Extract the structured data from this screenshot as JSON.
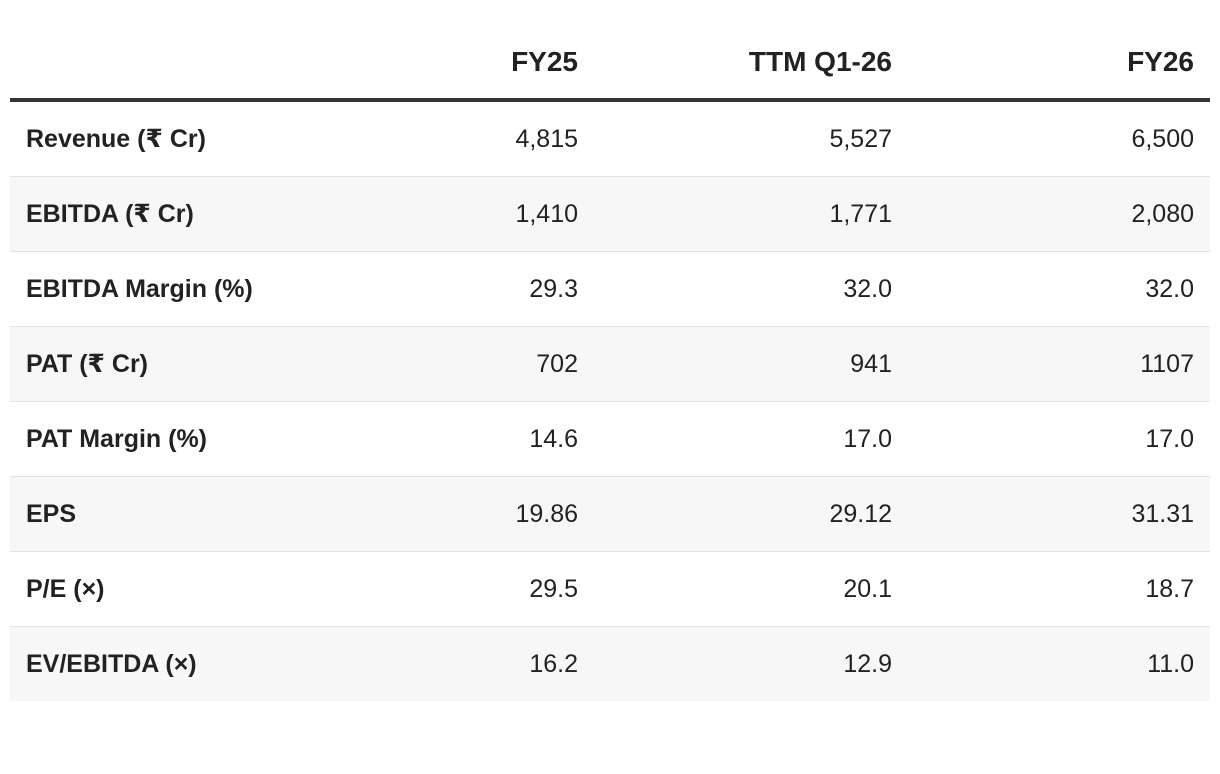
{
  "table": {
    "header": [
      "FY25",
      "TTM Q1-26",
      "FY26"
    ],
    "rows": [
      [
        "Revenue (₹ Cr)",
        "4,815",
        "5,527",
        "6,500"
      ],
      [
        "EBITDA (₹ Cr)",
        "1,410",
        "1,771",
        "2,080"
      ],
      [
        "EBITDA Margin (%)",
        "29.3",
        "32.0",
        "32.0"
      ],
      [
        "PAT (₹ Cr)",
        "702",
        "941",
        "1107"
      ],
      [
        "PAT Margin (%)",
        "14.6",
        "17.0",
        "17.0"
      ],
      [
        "EPS",
        "19.86",
        "29.12",
        "31.31"
      ],
      [
        "P/E (×)",
        "29.5",
        "20.1",
        "18.7"
      ],
      [
        "EV/EBITDA (×)",
        "16.2",
        "12.9",
        "11.0"
      ]
    ]
  }
}
